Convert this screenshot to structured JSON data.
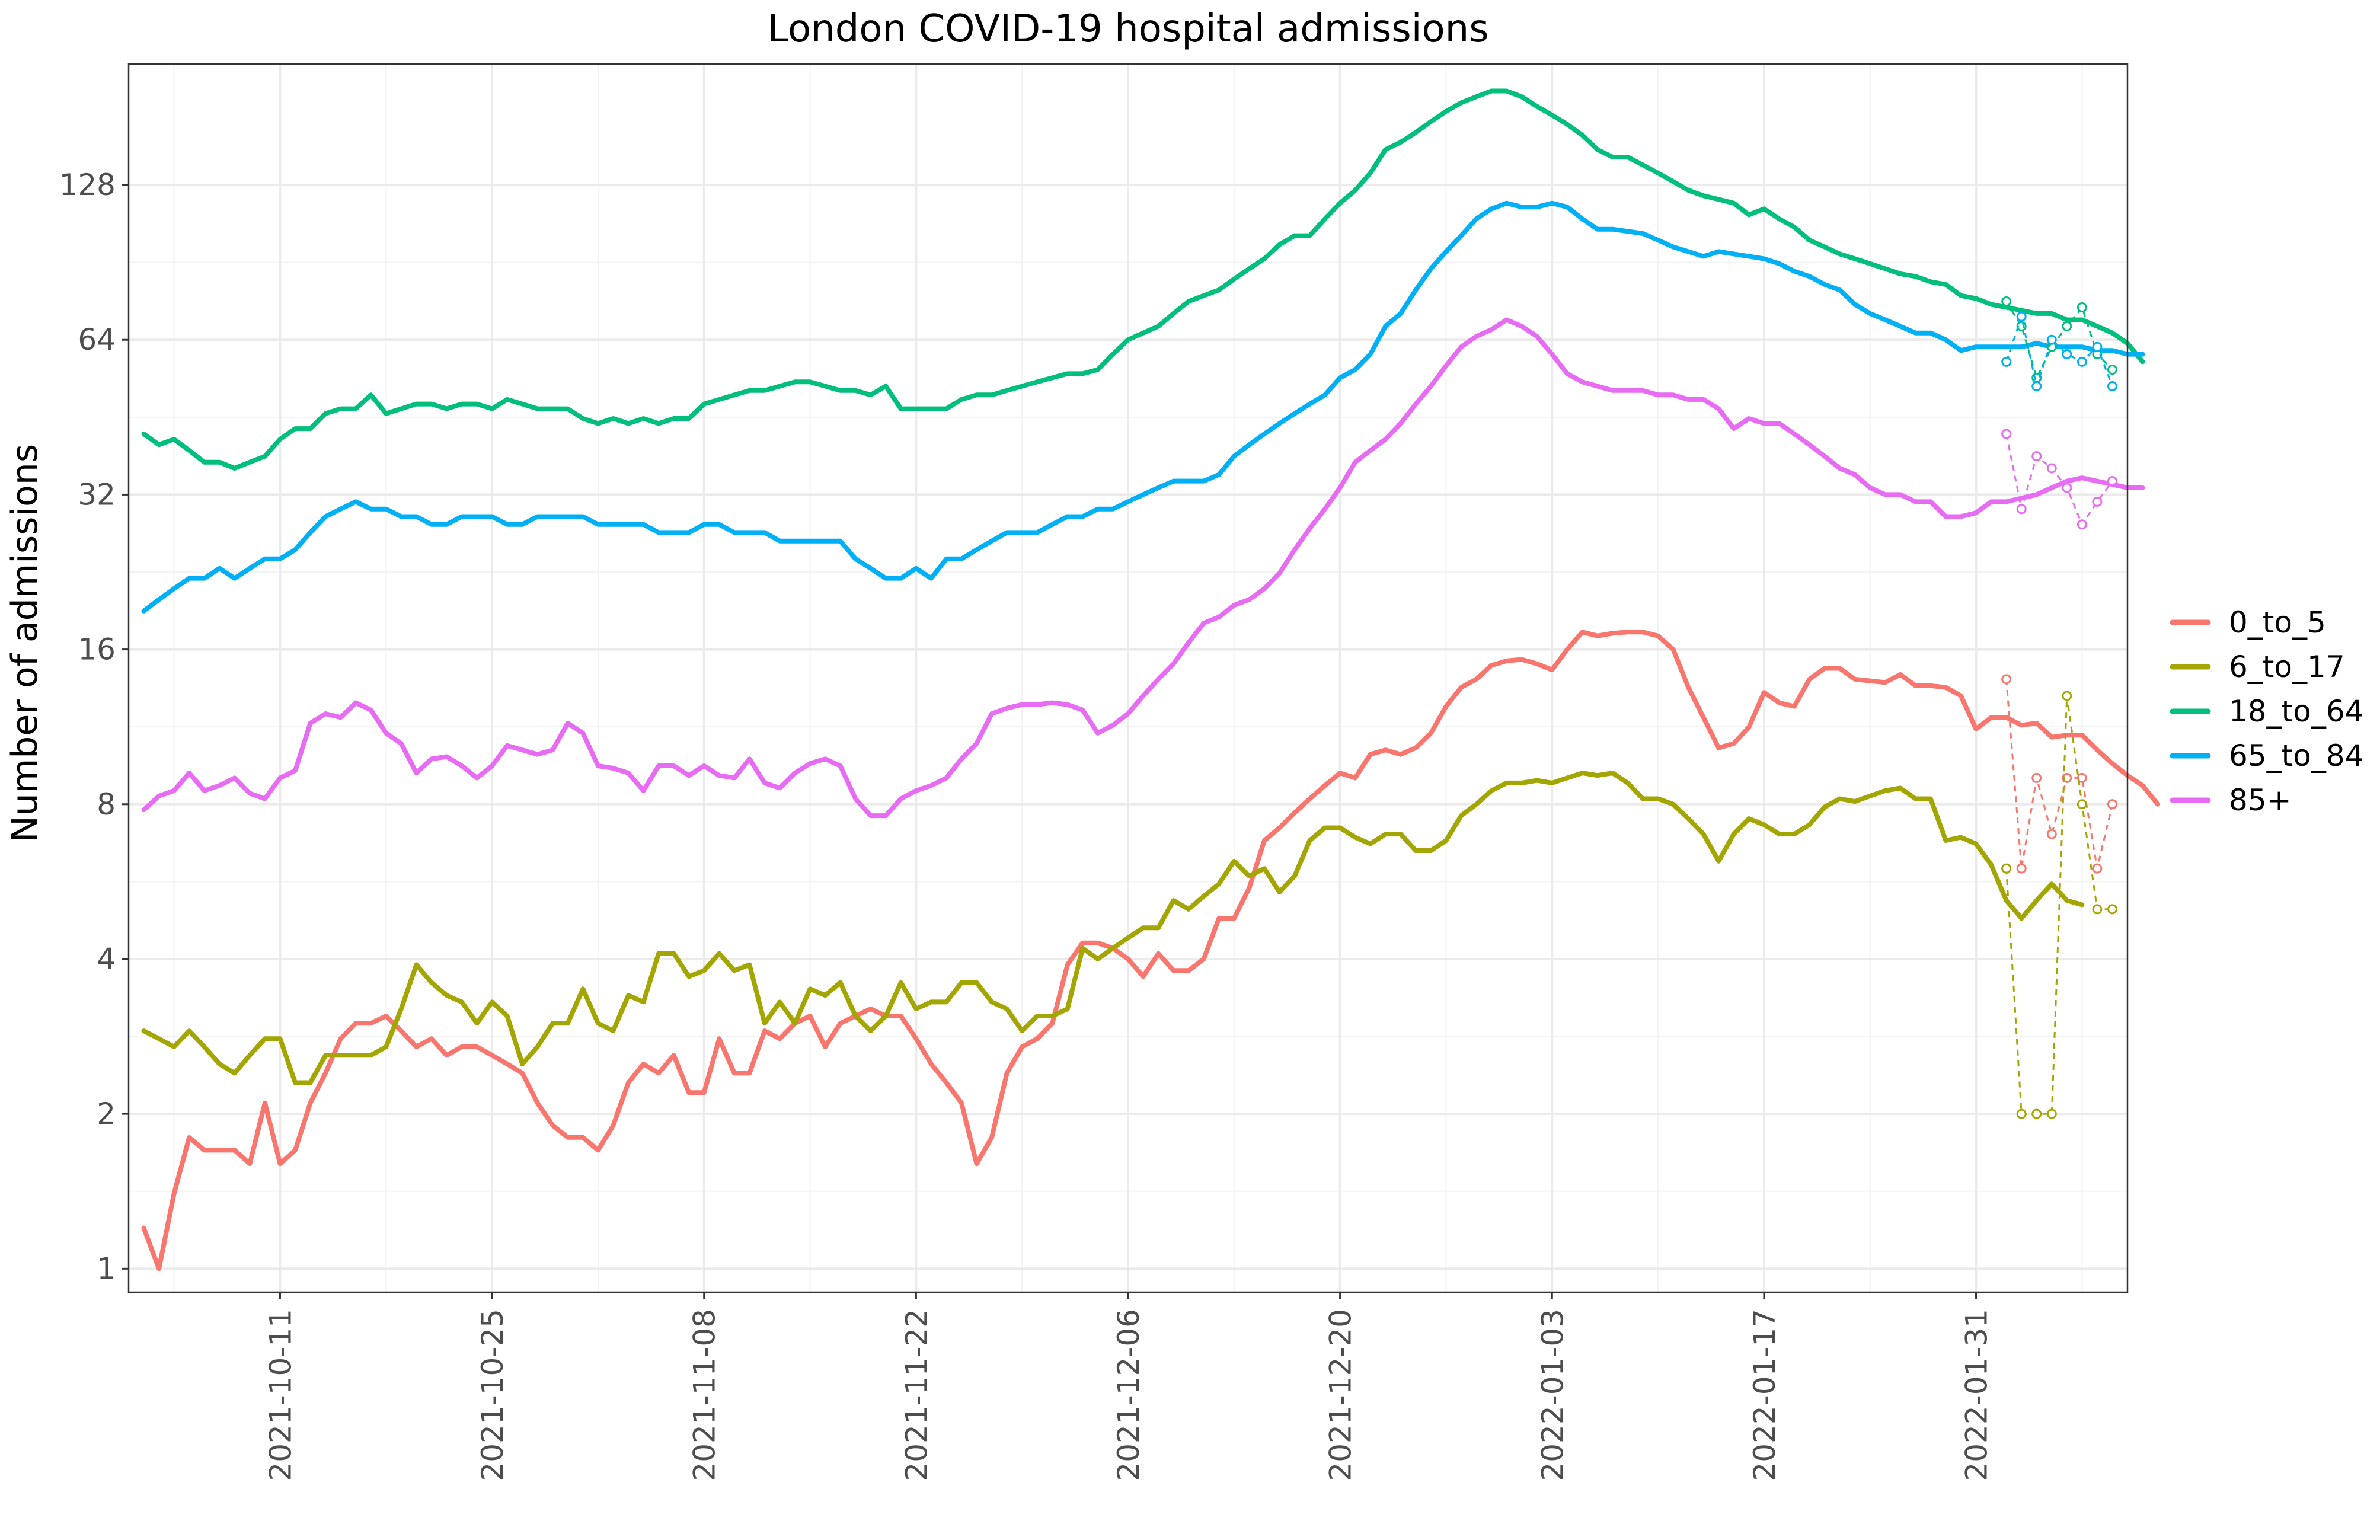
{
  "chart_data": {
    "type": "line",
    "title": "London COVID-19 hospital admissions",
    "xlabel": "",
    "ylabel": "Number of admissions",
    "y_scale": "log2",
    "ylim": [
      0.9,
      220
    ],
    "y_ticks": [
      1,
      2,
      4,
      8,
      16,
      32,
      64,
      128
    ],
    "y_tick_labels": [
      "1",
      "2",
      "4",
      "8",
      "16",
      "32",
      "64",
      "128"
    ],
    "x_range": [
      "2021-10-01",
      "2022-02-10"
    ],
    "x_ticks": [
      "2021-10-11",
      "2021-10-25",
      "2021-11-08",
      "2021-11-22",
      "2021-12-06",
      "2021-12-20",
      "2022-01-03",
      "2022-01-17",
      "2022-01-31"
    ],
    "grid": true,
    "legend_position": "right",
    "series": [
      {
        "name": "0_to_5",
        "color": "#F8766D",
        "start_date": "2021-10-02",
        "values": [
          1.2,
          1.0,
          1.4,
          1.8,
          1.7,
          1.7,
          1.7,
          1.6,
          2.1,
          1.6,
          1.7,
          2.1,
          2.4,
          2.8,
          3.0,
          3.0,
          3.1,
          2.9,
          2.7,
          2.8,
          2.6,
          2.7,
          2.7,
          2.6,
          2.5,
          2.4,
          2.1,
          1.9,
          1.8,
          1.8,
          1.7,
          1.9,
          2.3,
          2.5,
          2.4,
          2.6,
          2.2,
          2.2,
          2.8,
          2.4,
          2.4,
          2.9,
          2.8,
          3.0,
          3.1,
          2.7,
          3.0,
          3.1,
          3.2,
          3.1,
          3.1,
          2.8,
          2.5,
          2.3,
          2.1,
          1.6,
          1.8,
          2.4,
          2.7,
          2.8,
          3.0,
          3.9,
          4.3,
          4.3,
          4.2,
          4.0,
          3.7,
          4.1,
          3.8,
          3.8,
          4.0,
          4.8,
          4.8,
          5.5,
          6.8,
          7.2,
          7.7,
          8.2,
          8.7,
          9.2,
          9.0,
          10.0,
          10.2,
          10.0,
          10.3,
          11.0,
          12.4,
          13.5,
          14.0,
          14.9,
          15.2,
          15.3,
          15.0,
          14.6,
          16.0,
          17.3,
          17.0,
          17.2,
          17.3,
          17.3,
          17.0,
          16.0,
          13.5,
          11.8,
          10.3,
          10.5,
          11.3,
          13.2,
          12.6,
          12.4,
          14.0,
          14.7,
          14.7,
          14.0,
          13.9,
          13.8,
          14.3,
          13.6,
          13.6,
          13.5,
          13.0,
          11.2,
          11.8,
          11.8,
          11.4,
          11.5,
          10.8,
          10.9,
          10.9,
          10.2,
          9.6,
          9.1,
          8.7,
          8.0
        ]
      },
      {
        "name": "6_to_17",
        "color": "#A3A500",
        "start_date": "2021-10-02",
        "values": [
          2.9,
          2.8,
          2.7,
          2.9,
          2.7,
          2.5,
          2.4,
          2.6,
          2.8,
          2.8,
          2.3,
          2.3,
          2.6,
          2.6,
          2.6,
          2.6,
          2.7,
          3.2,
          3.9,
          3.6,
          3.4,
          3.3,
          3.0,
          3.3,
          3.1,
          2.5,
          2.7,
          3.0,
          3.0,
          3.5,
          3.0,
          2.9,
          3.4,
          3.3,
          4.1,
          4.1,
          3.7,
          3.8,
          4.1,
          3.8,
          3.9,
          3.0,
          3.3,
          3.0,
          3.5,
          3.4,
          3.6,
          3.1,
          2.9,
          3.1,
          3.6,
          3.2,
          3.3,
          3.3,
          3.6,
          3.6,
          3.3,
          3.2,
          2.9,
          3.1,
          3.1,
          3.2,
          4.2,
          4.0,
          4.2,
          4.4,
          4.6,
          4.6,
          5.2,
          5.0,
          5.3,
          5.6,
          6.2,
          5.8,
          6.0,
          5.4,
          5.8,
          6.8,
          7.2,
          7.2,
          6.9,
          6.7,
          7.0,
          7.0,
          6.5,
          6.5,
          6.8,
          7.6,
          8.0,
          8.5,
          8.8,
          8.8,
          8.9,
          8.8,
          9.0,
          9.2,
          9.1,
          9.2,
          8.8,
          8.2,
          8.2,
          8.0,
          7.5,
          7.0,
          6.2,
          7.0,
          7.5,
          7.3,
          7.0,
          7.0,
          7.3,
          7.9,
          8.2,
          8.1,
          8.3,
          8.5,
          8.6,
          8.2,
          8.2,
          6.8,
          6.9,
          6.7,
          6.1,
          5.2,
          4.8,
          5.2,
          5.6,
          5.2,
          5.1
        ]
      },
      {
        "name": "18_to_64",
        "color": "#00BF7D",
        "start_date": "2021-10-02",
        "values": [
          42,
          40,
          41,
          39,
          37,
          37,
          36,
          37,
          38,
          41,
          43,
          43,
          46,
          47,
          47,
          50,
          46,
          47,
          48,
          48,
          47,
          48,
          48,
          47,
          49,
          48,
          47,
          47,
          47,
          45,
          44,
          45,
          44,
          45,
          44,
          45,
          45,
          48,
          49,
          50,
          51,
          51,
          52,
          53,
          53,
          52,
          51,
          51,
          50,
          52,
          47,
          47,
          47,
          47,
          49,
          50,
          50,
          51,
          52,
          53,
          54,
          55,
          55,
          56,
          60,
          64,
          66,
          68,
          72,
          76,
          78,
          80,
          84,
          88,
          92,
          98,
          102,
          102,
          110,
          118,
          125,
          135,
          150,
          155,
          162,
          170,
          178,
          185,
          190,
          195,
          195,
          190,
          182,
          175,
          168,
          160,
          150,
          145,
          145,
          140,
          135,
          130,
          125,
          122,
          120,
          118,
          112,
          115,
          110,
          106,
          100,
          97,
          94,
          92,
          90,
          88,
          86,
          85,
          83,
          82,
          78,
          77,
          75,
          74,
          73,
          72,
          72,
          70,
          70,
          68,
          66,
          63,
          58
        ]
      },
      {
        "name": "65_to_84",
        "color": "#00B0F6",
        "start_date": "2021-10-02",
        "values": [
          19,
          20,
          21,
          22,
          22,
          23,
          22,
          23,
          24,
          24,
          25,
          27,
          29,
          30,
          31,
          30,
          30,
          29,
          29,
          28,
          28,
          29,
          29,
          29,
          28,
          28,
          29,
          29,
          29,
          29,
          28,
          28,
          28,
          28,
          27,
          27,
          27,
          28,
          28,
          27,
          27,
          27,
          26,
          26,
          26,
          26,
          26,
          24,
          23,
          22,
          22,
          23,
          22,
          24,
          24,
          25,
          26,
          27,
          27,
          27,
          28,
          29,
          29,
          30,
          30,
          31,
          32,
          33,
          34,
          34,
          34,
          35,
          38,
          40,
          42,
          44,
          46,
          48,
          50,
          54,
          56,
          60,
          68,
          72,
          80,
          88,
          95,
          102,
          110,
          115,
          118,
          116,
          116,
          118,
          116,
          110,
          105,
          105,
          104,
          103,
          100,
          97,
          95,
          93,
          95,
          94,
          93,
          92,
          90,
          87,
          85,
          82,
          80,
          75,
          72,
          70,
          68,
          66,
          66,
          64,
          61,
          62,
          62,
          62,
          62,
          63,
          62,
          62,
          62,
          61,
          61,
          60,
          60
        ]
      },
      {
        "name": "85+",
        "color": "#E76BF3",
        "start_date": "2021-10-02",
        "values": [
          7.8,
          8.3,
          8.5,
          9.2,
          8.5,
          8.7,
          9.0,
          8.4,
          8.2,
          9.0,
          9.3,
          11.5,
          12.0,
          11.8,
          12.6,
          12.2,
          11.0,
          10.5,
          9.2,
          9.8,
          9.9,
          9.5,
          9.0,
          9.5,
          10.4,
          10.2,
          10.0,
          10.2,
          11.5,
          11.0,
          9.5,
          9.4,
          9.2,
          8.5,
          9.5,
          9.5,
          9.1,
          9.5,
          9.1,
          9.0,
          9.8,
          8.8,
          8.6,
          9.2,
          9.6,
          9.8,
          9.5,
          8.2,
          7.6,
          7.6,
          8.2,
          8.5,
          8.7,
          9.0,
          9.8,
          10.5,
          12.0,
          12.3,
          12.5,
          12.5,
          12.6,
          12.5,
          12.2,
          11.0,
          11.4,
          12.0,
          13.0,
          14.0,
          15.0,
          16.5,
          18.0,
          18.5,
          19.5,
          20.0,
          21.0,
          22.5,
          25.0,
          27.5,
          30.0,
          33.0,
          37.0,
          39.0,
          41.0,
          44.0,
          48.0,
          52.0,
          57.0,
          62.0,
          65.0,
          67.0,
          70.0,
          68.0,
          65.0,
          60.0,
          55.0,
          53.0,
          52.0,
          51.0,
          51.0,
          51.0,
          50.0,
          50.0,
          49.0,
          49.0,
          47.0,
          43.0,
          45.0,
          44.0,
          44.0,
          42.0,
          40.0,
          38.0,
          36.0,
          35.0,
          33.0,
          32.0,
          32.0,
          31.0,
          31.0,
          29.0,
          29.0,
          29.5,
          31.0,
          31.0,
          31.5,
          32.0,
          33.0,
          34.0,
          34.5,
          34.0,
          33.5,
          33.0,
          33.0
        ]
      }
    ],
    "recent_points": [
      {
        "name": "0_to_5",
        "color": "#F8766D",
        "dates": [
          "2022-02-02",
          "2022-02-03",
          "2022-02-04",
          "2022-02-05",
          "2022-02-06",
          "2022-02-07",
          "2022-02-08",
          "2022-02-09"
        ],
        "values": [
          14,
          6,
          9,
          7,
          9,
          9,
          6,
          8
        ]
      },
      {
        "name": "6_to_17",
        "color": "#A3A500",
        "dates": [
          "2022-02-02",
          "2022-02-03",
          "2022-02-04",
          "2022-02-05",
          "2022-02-06",
          "2022-02-07",
          "2022-02-08",
          "2022-02-09"
        ],
        "values": [
          6,
          2,
          2,
          2,
          13,
          8,
          5,
          5
        ]
      },
      {
        "name": "18_to_64",
        "color": "#00BF7D",
        "dates": [
          "2022-02-02",
          "2022-02-03",
          "2022-02-04",
          "2022-02-05",
          "2022-02-06",
          "2022-02-07",
          "2022-02-08",
          "2022-02-09"
        ],
        "values": [
          76,
          68,
          54,
          62,
          68,
          74,
          60,
          56
        ]
      },
      {
        "name": "65_to_84",
        "color": "#00B0F6",
        "dates": [
          "2022-02-02",
          "2022-02-03",
          "2022-02-04",
          "2022-02-05",
          "2022-02-06",
          "2022-02-07",
          "2022-02-08",
          "2022-02-09"
        ],
        "values": [
          58,
          71,
          52,
          64,
          60,
          58,
          62,
          52
        ]
      },
      {
        "name": "85+",
        "color": "#E76BF3",
        "dates": [
          "2022-02-02",
          "2022-02-03",
          "2022-02-04",
          "2022-02-05",
          "2022-02-06",
          "2022-02-07",
          "2022-02-08",
          "2022-02-09"
        ],
        "values": [
          42,
          30,
          38,
          36,
          33,
          28,
          31,
          34
        ]
      }
    ]
  }
}
